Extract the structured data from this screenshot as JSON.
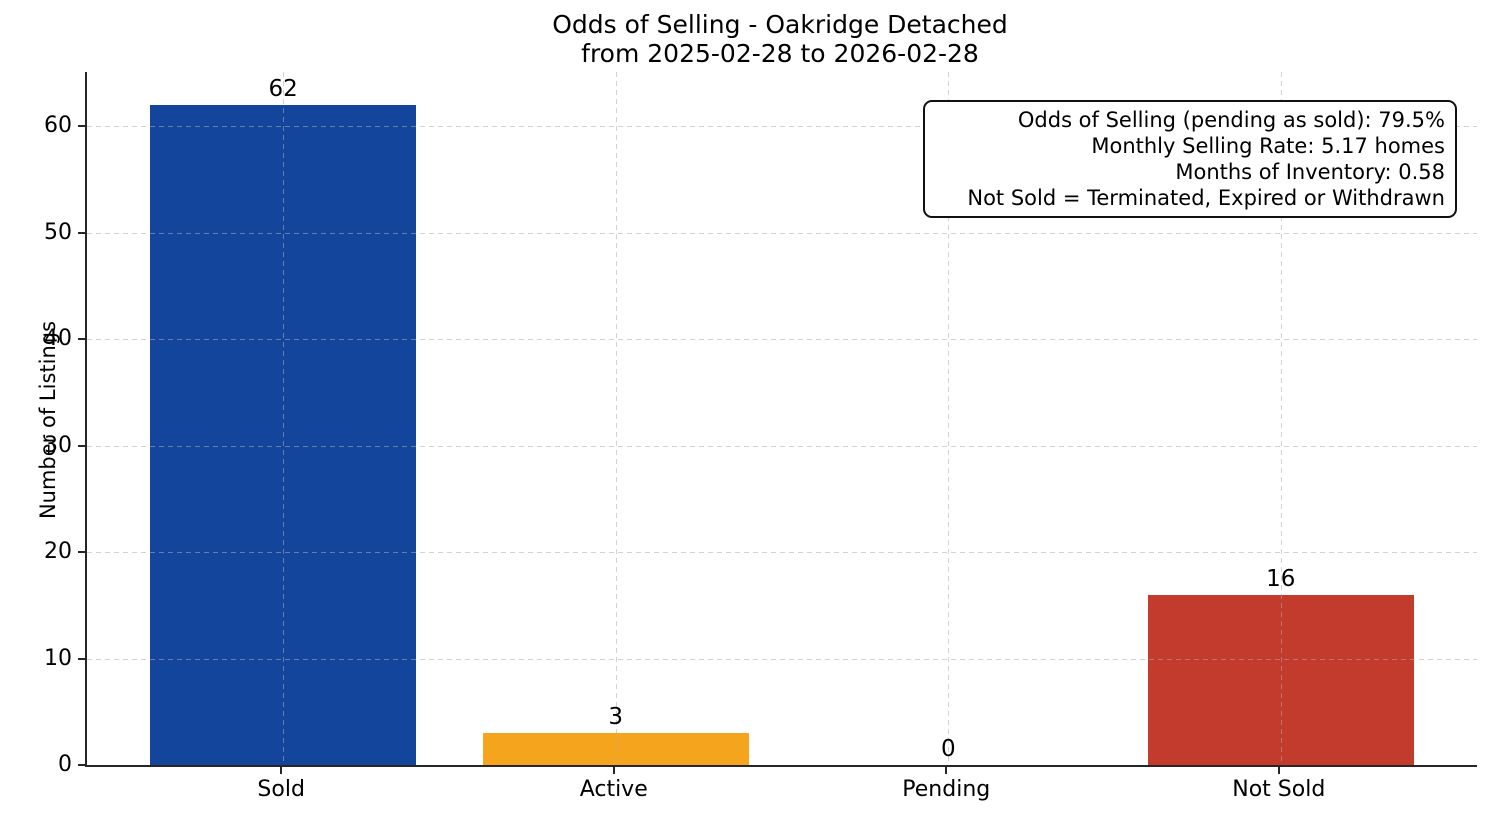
{
  "title": {
    "line1": "Odds of Selling - Oakridge Detached",
    "line2": "from 2025-02-28 to 2026-02-28"
  },
  "chart_data": {
    "type": "bar",
    "title": "Odds of Selling - Oakridge Detached\nfrom 2025-02-28 to 2026-02-28",
    "categories": [
      "Sold",
      "Active",
      "Pending",
      "Not Sold"
    ],
    "values": [
      62,
      3,
      0,
      16
    ],
    "value_labels": [
      "62",
      "3",
      "0",
      "16"
    ],
    "bar_colors": [
      "#14459C",
      "#F5A41D",
      "#808080",
      "#C23B2C"
    ],
    "xlabel": "",
    "ylabel": "Number of Listings",
    "ylim": [
      0,
      65.1
    ],
    "yticks": [
      0,
      10,
      20,
      30,
      40,
      50,
      60
    ],
    "grid": "dashed gridlines on both axes, drawn above bars",
    "legend": "none",
    "annotations": [
      "Odds of Selling (pending as sold): 79.5%",
      "Monthly Selling Rate: 5.17 homes",
      "Months of Inventory: 0.58",
      "Not Sold = Terminated, Expired or Withdrawn"
    ],
    "stats": {
      "odds_of_selling_pending_as_sold_pct": 79.5,
      "monthly_selling_rate_homes": 5.17,
      "months_of_inventory": 0.58
    }
  },
  "colors": {
    "sold_bar": "#14459C",
    "active_bar": "#F5A41D",
    "not_sold_bar": "#C23B2C",
    "axis": "#262626",
    "gridline": "#D8D8D8",
    "background": "#FFFFFF",
    "text": "#000000"
  }
}
